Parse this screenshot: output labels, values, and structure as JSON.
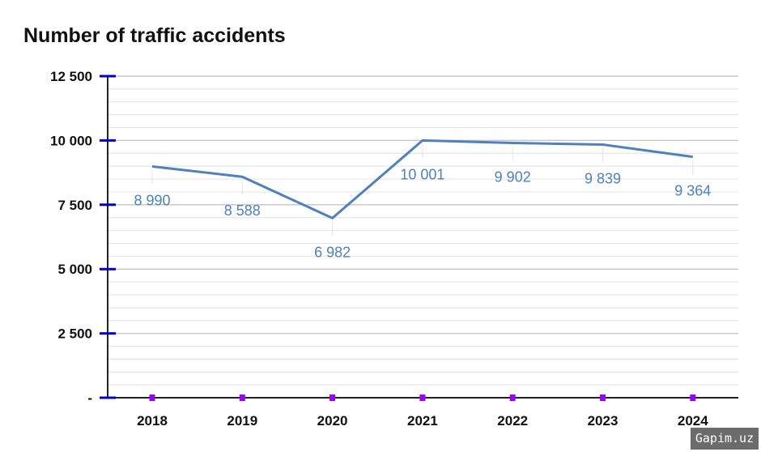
{
  "chart_data": {
    "type": "line",
    "title": "Number of traffic accidents",
    "categories": [
      "2018",
      "2019",
      "2020",
      "2021",
      "2022",
      "2023",
      "2024"
    ],
    "values": [
      8990,
      8588,
      6982,
      10001,
      9902,
      9839,
      9364
    ],
    "data_labels": [
      "8 990",
      "8 588",
      "6 982",
      "10 001",
      "9 902",
      "9 839",
      "9 364"
    ],
    "ylim": [
      0,
      12500
    ],
    "yticks": [
      0,
      2500,
      5000,
      7500,
      10000,
      12500
    ],
    "ytick_labels": [
      "-",
      "2 500",
      "5 000",
      "7 500",
      "10 000",
      "12 500"
    ],
    "minor_grid_step": 500,
    "grid": true,
    "colors": {
      "line": "#4f81bd",
      "axis_tick": "#0000cc",
      "x_marker": "#9900ff"
    }
  },
  "watermark": "Gapim.uz"
}
